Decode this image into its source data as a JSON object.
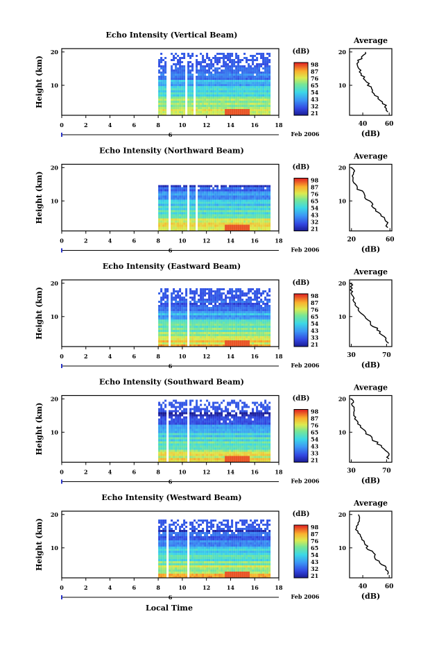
{
  "figure": {
    "date_label": "Feb 2006",
    "xlabel": "Local Time",
    "day_label": "6",
    "colorbar_unit": "(dB)",
    "avg_title": "Average",
    "avg_unit": "(dB)",
    "ylabel": "Height (km)"
  },
  "chart_data": [
    {
      "type": "heatmap",
      "title": "Echo Intensity (Vertical Beam)",
      "xlabel": "Local Time",
      "ylabel": "Height (km)",
      "x_ticks": [
        0,
        2,
        4,
        6,
        8,
        10,
        12,
        14,
        16,
        18
      ],
      "y_ticks": [
        10,
        20
      ],
      "xlim": [
        0,
        18
      ],
      "ylim": [
        1,
        21
      ],
      "data_start": 8,
      "data_end": 17.2,
      "gaps": [
        [
          8.6,
          8.9
        ],
        [
          10.2,
          10.4
        ],
        [
          10.9,
          11.1
        ]
      ],
      "top_height": 20,
      "colorbar_ticks": [
        "98",
        "87",
        "76",
        "65",
        "54",
        "43",
        "32",
        "21"
      ],
      "average": {
        "title": "Average",
        "xlabel": "(dB)",
        "x_ticks": [
          40,
          60
        ],
        "xlim": [
          30,
          62
        ],
        "heights": [
          2,
          4,
          6,
          8,
          10,
          12,
          14,
          16,
          18,
          20
        ],
        "values": [
          59,
          57,
          52,
          48,
          45,
          41,
          38,
          36,
          38,
          42
        ]
      }
    },
    {
      "type": "heatmap",
      "title": "Echo Intensity (Northward Beam)",
      "xlabel": "Local Time",
      "ylabel": "Height (km)",
      "x_ticks": [
        0,
        2,
        4,
        6,
        8,
        10,
        12,
        14,
        16,
        18
      ],
      "y_ticks": [
        10,
        20
      ],
      "xlim": [
        0,
        18
      ],
      "ylim": [
        1,
        21
      ],
      "data_start": 8,
      "data_end": 17.2,
      "gaps": [
        [
          8.7,
          8.95
        ],
        [
          10.3,
          10.5
        ],
        [
          11.0,
          11.15
        ]
      ],
      "top_height": 15,
      "colorbar_ticks": [
        "98",
        "87",
        "76",
        "65",
        "54",
        "43",
        "32",
        "21"
      ],
      "average": {
        "title": "Average",
        "xlabel": "(dB)",
        "x_ticks": [
          20,
          60
        ],
        "xlim": [
          18,
          62
        ],
        "heights": [
          2,
          4,
          6,
          8,
          10,
          12,
          14,
          16,
          18,
          20
        ],
        "values": [
          58,
          56,
          50,
          44,
          38,
          33,
          26,
          23,
          22,
          21
        ]
      }
    },
    {
      "type": "heatmap",
      "title": "Echo Intensity (Eastward Beam)",
      "xlabel": "Local Time",
      "ylabel": "Height (km)",
      "x_ticks": [
        0,
        2,
        4,
        6,
        8,
        10,
        12,
        14,
        16,
        18
      ],
      "y_ticks": [
        10,
        20
      ],
      "xlim": [
        0,
        18
      ],
      "ylim": [
        1,
        21
      ],
      "data_start": 8,
      "data_end": 17.2,
      "gaps": [
        [
          8.7,
          8.95
        ],
        [
          10.3,
          10.5
        ],
        [
          10.95,
          11.1
        ]
      ],
      "top_height": 19,
      "colorbar_ticks": [
        "98",
        "87",
        "76",
        "65",
        "54",
        "43",
        "33",
        "21"
      ],
      "average": {
        "title": "Average",
        "xlabel": "(dB)",
        "x_ticks": [
          30,
          70
        ],
        "xlim": [
          28,
          76
        ],
        "heights": [
          2,
          4,
          6,
          8,
          10,
          12,
          14,
          16,
          18,
          20
        ],
        "values": [
          72,
          68,
          60,
          52,
          44,
          38,
          33,
          31,
          30,
          30
        ]
      }
    },
    {
      "type": "heatmap",
      "title": "Echo Intensity (Southward Beam)",
      "xlabel": "Local Time",
      "ylabel": "Height (km)",
      "x_ticks": [
        0,
        2,
        4,
        6,
        8,
        10,
        12,
        14,
        16,
        18
      ],
      "y_ticks": [
        10,
        20
      ],
      "xlim": [
        0,
        18
      ],
      "ylim": [
        1,
        21
      ],
      "data_start": 8,
      "data_end": 17.2,
      "gaps": [
        [
          8.6,
          8.85
        ],
        [
          10.3,
          10.5
        ],
        [
          10.95,
          11.1
        ]
      ],
      "top_height": 20,
      "colorbar_ticks": [
        "98",
        "87",
        "76",
        "65",
        "54",
        "43",
        "33",
        "21"
      ],
      "average": {
        "title": "Average",
        "xlabel": "(dB)",
        "x_ticks": [
          30,
          70
        ],
        "xlim": [
          28,
          76
        ],
        "heights": [
          2,
          4,
          6,
          8,
          10,
          12,
          14,
          16,
          18,
          20
        ],
        "values": [
          73,
          70,
          62,
          54,
          46,
          40,
          35,
          32,
          31,
          30
        ]
      }
    },
    {
      "type": "heatmap",
      "title": "Echo Intensity (Westward Beam)",
      "xlabel": "Local Time",
      "ylabel": "Height (km)",
      "x_ticks": [
        0,
        2,
        4,
        6,
        8,
        10,
        12,
        14,
        16,
        18
      ],
      "y_ticks": [
        10,
        20
      ],
      "xlim": [
        0,
        18
      ],
      "ylim": [
        1,
        21
      ],
      "data_start": 8,
      "data_end": 17.2,
      "gaps": [
        [
          8.6,
          8.85
        ],
        [
          10.3,
          10.5
        ],
        [
          10.95,
          11.1
        ]
      ],
      "top_height": 19,
      "colorbar_ticks": [
        "98",
        "87",
        "76",
        "65",
        "54",
        "43",
        "32",
        "21"
      ],
      "average": {
        "title": "Average",
        "xlabel": "(dB)",
        "x_ticks": [
          40,
          60
        ],
        "xlim": [
          30,
          62
        ],
        "heights": [
          2,
          4,
          6,
          8,
          10,
          12,
          14,
          16,
          18,
          20
        ],
        "values": [
          59,
          57,
          52,
          48,
          44,
          40,
          37,
          35,
          36,
          38
        ]
      }
    }
  ]
}
